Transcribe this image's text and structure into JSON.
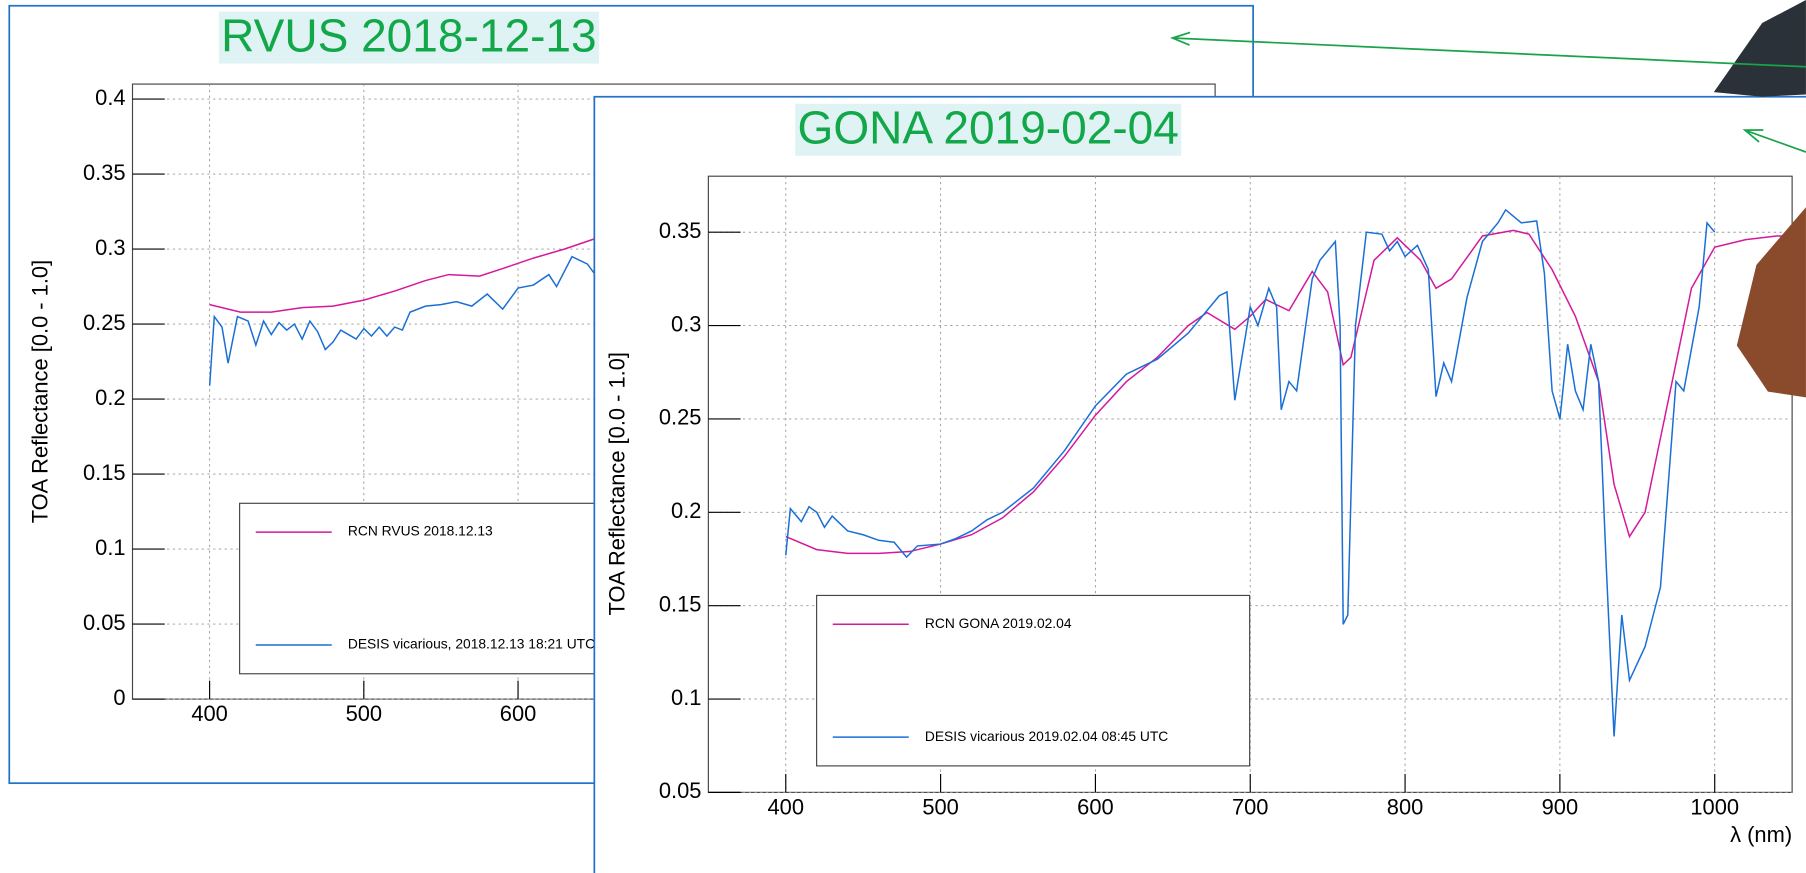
{
  "chart_data": [
    {
      "type": "line",
      "title": "RVUS 2018-12-13",
      "ylabel": "TOA Reflectance [0.0 - 1.0]",
      "xlim": [
        350,
        1052
      ],
      "ylim": [
        0,
        0.41
      ],
      "xticks": [
        400,
        500,
        600
      ],
      "yticks": [
        0,
        0.05,
        0.1,
        0.15,
        0.2,
        0.25,
        0.3,
        0.35,
        0.4
      ],
      "grid": true,
      "legend": "lower left",
      "series": [
        {
          "name": "RCN RVUS 2018.12.13",
          "color": "#d4199a",
          "x": [
            400,
            420,
            440,
            460,
            480,
            500,
            520,
            540,
            555,
            575,
            590,
            610,
            630,
            650
          ],
          "values": [
            0.263,
            0.258,
            0.258,
            0.261,
            0.262,
            0.266,
            0.272,
            0.279,
            0.283,
            0.282,
            0.287,
            0.294,
            0.3,
            0.307
          ]
        },
        {
          "name": "DESIS vicarious, 2018.12.13 18:21 UTC",
          "color": "#1a6fd6",
          "x": [
            400,
            403,
            408,
            412,
            418,
            425,
            430,
            435,
            440,
            445,
            450,
            455,
            460,
            465,
            470,
            475,
            480,
            485,
            490,
            495,
            500,
            505,
            510,
            515,
            520,
            525,
            530,
            540,
            550,
            560,
            570,
            580,
            590,
            600,
            610,
            620,
            625,
            635,
            645,
            650
          ],
          "values": [
            0.209,
            0.255,
            0.248,
            0.224,
            0.255,
            0.252,
            0.236,
            0.252,
            0.243,
            0.251,
            0.246,
            0.25,
            0.24,
            0.252,
            0.245,
            0.233,
            0.238,
            0.246,
            0.243,
            0.24,
            0.247,
            0.242,
            0.248,
            0.242,
            0.248,
            0.246,
            0.258,
            0.262,
            0.263,
            0.265,
            0.262,
            0.27,
            0.26,
            0.274,
            0.276,
            0.283,
            0.275,
            0.295,
            0.29,
            0.283
          ]
        }
      ]
    },
    {
      "type": "line",
      "title": "GONA 2019-02-04",
      "ylabel": "TOA Reflectance [0.0 - 1.0]",
      "xlabel": "λ (nm)",
      "xlim": [
        350,
        1050
      ],
      "ylim": [
        0.05,
        0.38
      ],
      "xticks": [
        400,
        500,
        600,
        700,
        800,
        900,
        1000
      ],
      "yticks": [
        0.05,
        0.1,
        0.15,
        0.2,
        0.25,
        0.3,
        0.35
      ],
      "grid": true,
      "legend": "lower left",
      "series": [
        {
          "name": "RCN GONA 2019.02.04",
          "color": "#d4199a",
          "x": [
            400,
            420,
            440,
            460,
            480,
            500,
            520,
            540,
            560,
            580,
            600,
            620,
            640,
            660,
            672,
            690,
            700,
            710,
            725,
            740,
            750,
            760,
            765,
            780,
            795,
            810,
            820,
            830,
            850,
            870,
            880,
            895,
            910,
            925,
            935,
            945,
            955,
            970,
            985,
            1000,
            1020,
            1040,
            1050
          ],
          "values": [
            0.187,
            0.18,
            0.178,
            0.178,
            0.179,
            0.183,
            0.188,
            0.197,
            0.211,
            0.23,
            0.252,
            0.27,
            0.283,
            0.3,
            0.307,
            0.298,
            0.305,
            0.314,
            0.308,
            0.329,
            0.318,
            0.279,
            0.283,
            0.335,
            0.347,
            0.335,
            0.32,
            0.325,
            0.348,
            0.351,
            0.349,
            0.33,
            0.305,
            0.27,
            0.215,
            0.187,
            0.2,
            0.26,
            0.32,
            0.342,
            0.346,
            0.348,
            0.348
          ]
        },
        {
          "name": "DESIS vicarious 2019.02.04 08:45 UTC",
          "color": "#1a6fd6",
          "x": [
            400,
            403,
            410,
            415,
            420,
            425,
            430,
            440,
            450,
            460,
            470,
            478,
            485,
            500,
            510,
            520,
            530,
            540,
            560,
            580,
            600,
            620,
            640,
            660,
            680,
            685,
            690,
            695,
            700,
            705,
            712,
            717,
            720,
            725,
            730,
            740,
            745,
            755,
            758,
            760,
            763,
            768,
            775,
            785,
            790,
            795,
            800,
            808,
            815,
            820,
            825,
            830,
            840,
            850,
            860,
            865,
            875,
            885,
            890,
            895,
            900,
            905,
            910,
            915,
            920,
            925,
            930,
            935,
            940,
            945,
            955,
            965,
            975,
            980,
            990,
            995,
            1000
          ],
          "values": [
            0.177,
            0.202,
            0.195,
            0.203,
            0.2,
            0.192,
            0.198,
            0.19,
            0.188,
            0.185,
            0.184,
            0.176,
            0.182,
            0.183,
            0.186,
            0.19,
            0.196,
            0.2,
            0.213,
            0.233,
            0.257,
            0.274,
            0.282,
            0.296,
            0.316,
            0.318,
            0.26,
            0.285,
            0.31,
            0.3,
            0.32,
            0.31,
            0.255,
            0.27,
            0.265,
            0.325,
            0.335,
            0.345,
            0.3,
            0.14,
            0.145,
            0.3,
            0.35,
            0.349,
            0.34,
            0.345,
            0.337,
            0.343,
            0.33,
            0.262,
            0.28,
            0.27,
            0.315,
            0.345,
            0.355,
            0.362,
            0.355,
            0.356,
            0.328,
            0.265,
            0.25,
            0.29,
            0.265,
            0.255,
            0.29,
            0.27,
            0.17,
            0.08,
            0.145,
            0.11,
            0.128,
            0.16,
            0.27,
            0.265,
            0.31,
            0.355,
            0.35
          ]
        }
      ]
    }
  ]
}
